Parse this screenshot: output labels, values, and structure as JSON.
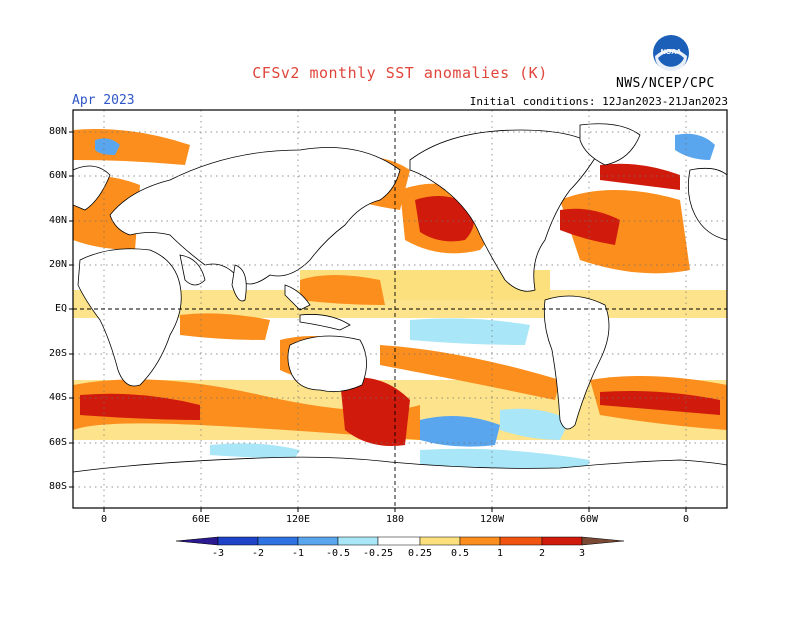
{
  "header": {
    "title": "CFSv2 monthly SST anomalies (K)",
    "month": "Apr 2023",
    "initial_conditions": "Initial conditions: 12Jan2023-21Jan2023",
    "agency": "NWS/NCEP/CPC",
    "logo_text": "NOAA"
  },
  "axes": {
    "lat_labels": [
      "80N",
      "60N",
      "40N",
      "20N",
      "EQ",
      "20S",
      "40S",
      "60S",
      "80S"
    ],
    "lon_labels": [
      "0",
      "60E",
      "120E",
      "180",
      "120W",
      "60W",
      "0"
    ]
  },
  "colorbar": {
    "labels": [
      "-3",
      "-2",
      "-1",
      "-0.5",
      "-0.25",
      "0.25",
      "0.5",
      "1",
      "2",
      "3"
    ],
    "colors": [
      "#2a1990",
      "#1f43c8",
      "#2f72e2",
      "#5aa6ee",
      "#a9e6f7",
      "#ffffff",
      "#fde07e",
      "#fb8e1c",
      "#f15410",
      "#cf1a0c",
      "#9c0a0a",
      "#7a4a35"
    ]
  },
  "colors": {
    "land_outline": "#000000",
    "grid": "#707070",
    "frame": "#000000"
  }
}
